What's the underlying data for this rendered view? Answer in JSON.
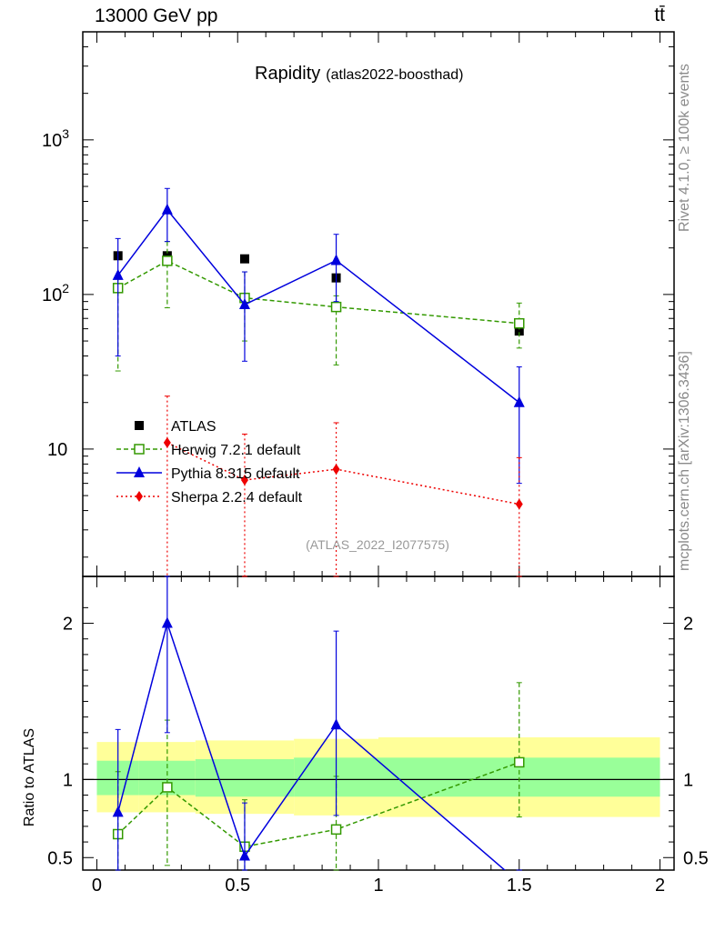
{
  "header": {
    "left": "13000 GeV pp",
    "right": "tt̄"
  },
  "side_text": {
    "rivet": "Rivet 4.1.0, ≥ 100k events",
    "mcplots": "mcplots.cern.ch [arXiv:1306.3436]"
  },
  "title": {
    "main": "Rapidity",
    "sub": "(atlas2022-boosthad)"
  },
  "watermark": "(ATLAS_2022_I2077575)",
  "ratio_ylabel": "Ratio to ATLAS",
  "chart_data": [
    {
      "type": "scatter",
      "panel": "main",
      "yscale": "log",
      "xlim": [
        -0.05,
        2.05
      ],
      "ylim": [
        1.5,
        5000
      ],
      "x_ticks": [
        0,
        0.5,
        1,
        1.5,
        2
      ],
      "y_tick_labels": [
        {
          "value": 10,
          "label": "10"
        },
        {
          "value": 100,
          "label": "10",
          "sup": "2"
        },
        {
          "value": 1000,
          "label": "10",
          "sup": "3"
        }
      ],
      "bin_edges": [
        0,
        0.15,
        0.35,
        0.7,
        1.0,
        2.0
      ],
      "x": [
        0.075,
        0.25,
        0.525,
        0.85,
        1.5
      ],
      "series": [
        {
          "name": "ATLAS",
          "color": "#000000",
          "marker": "square",
          "line": "none",
          "values": [
            178,
            178,
            170,
            128,
            58
          ]
        },
        {
          "name": "Herwig 7.2.1 default",
          "color": "#339900",
          "marker": "open-square",
          "line": "dashed",
          "values": [
            110,
            165,
            95,
            83,
            65
          ],
          "err_low": [
            32,
            82,
            50,
            35,
            45
          ],
          "err_high": [
            130,
            220,
            140,
            98,
            88
          ]
        },
        {
          "name": "Pythia 8.315 default",
          "color": "#0000dd",
          "marker": "triangle",
          "line": "solid",
          "values": [
            133,
            353,
            86,
            166,
            20
          ],
          "err_low": [
            40,
            220,
            37,
            90,
            6
          ],
          "err_high": [
            230,
            485,
            140,
            245,
            34
          ]
        },
        {
          "name": "Sherpa 2.2.4 default",
          "color": "#ee0000",
          "marker": "diamond",
          "line": "dotted",
          "values": [
            null,
            11,
            6.3,
            7.4,
            4.4
          ],
          "err_low": [
            null,
            1.5,
            1.5,
            1.5,
            1.5
          ],
          "err_high": [
            null,
            22,
            12.5,
            14.8,
            8.8
          ]
        }
      ]
    },
    {
      "type": "scatter",
      "panel": "ratio",
      "ylabel": "Ratio to ATLAS",
      "ylim": [
        0.42,
        2.3
      ],
      "y_ticks": [
        0.5,
        1,
        2
      ],
      "x_ticks": [
        0,
        0.5,
        1,
        1.5,
        2
      ],
      "bands": {
        "yellow": [
          [
            0.79,
            1.24
          ],
          [
            0.79,
            1.24
          ],
          [
            0.78,
            1.25
          ],
          [
            0.77,
            1.26
          ],
          [
            0.76,
            1.27
          ]
        ],
        "green": [
          [
            0.9,
            1.12
          ],
          [
            0.9,
            1.12
          ],
          [
            0.89,
            1.13
          ],
          [
            0.89,
            1.14
          ],
          [
            0.89,
            1.14
          ]
        ]
      },
      "series": [
        {
          "name": "Herwig 7.2.1 default",
          "values": [
            0.65,
            0.95,
            0.57,
            0.68,
            1.11
          ],
          "err_low": [
            0.42,
            0.45,
            0.42,
            0.42,
            0.76
          ],
          "err_high": [
            1.05,
            1.38,
            0.87,
            1.02,
            1.62
          ]
        },
        {
          "name": "Pythia 8.315 default",
          "values": [
            0.79,
            2.0,
            0.51,
            1.35,
            0.34
          ],
          "err_low": [
            0.42,
            1.3,
            0.42,
            0.77,
            0.42
          ],
          "err_high": [
            1.32,
            2.3,
            0.85,
            1.95,
            0.42
          ]
        }
      ]
    }
  ]
}
